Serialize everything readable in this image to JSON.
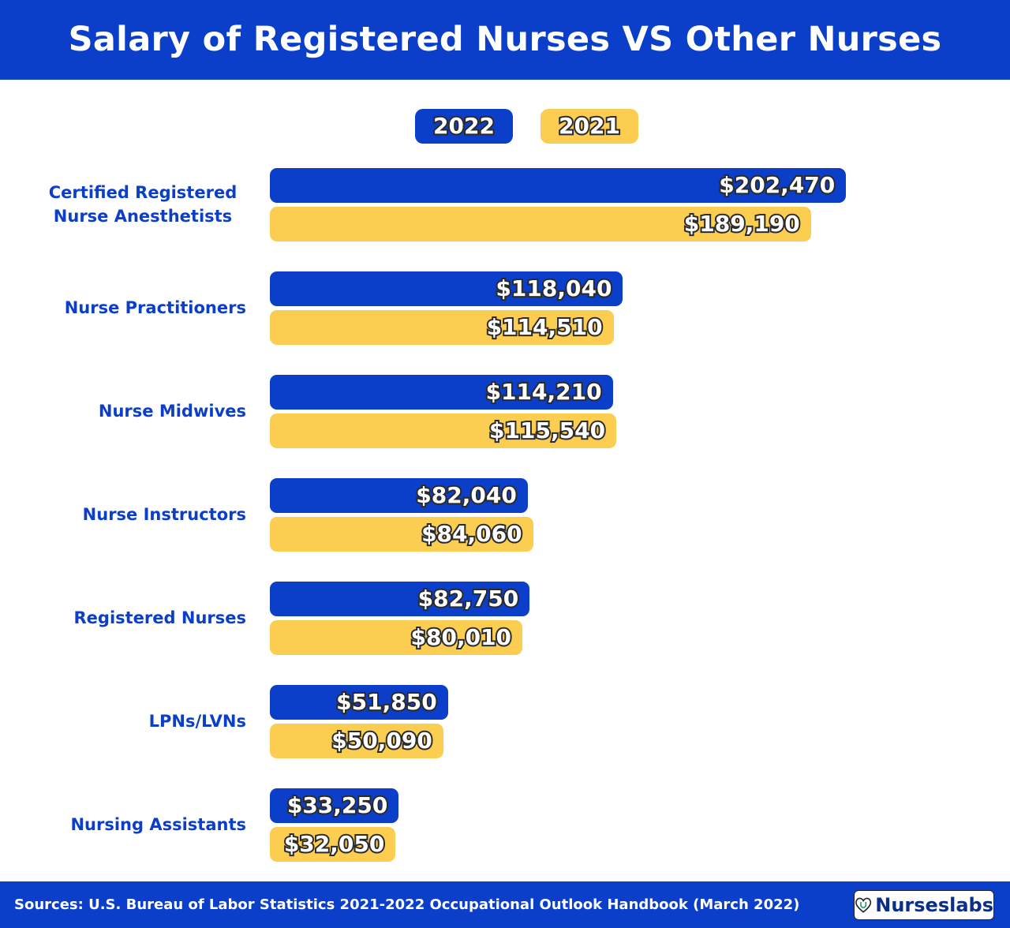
{
  "chart_data": {
    "type": "bar",
    "orientation": "horizontal",
    "title": "Salary of Registered Nurses VS Other Nurses",
    "categories": [
      "Certified Registered Nurse Anesthetists",
      "Nurse Practitioners",
      "Nurse Midwives",
      "Nurse Instructors",
      "Registered Nurses",
      "LPNs/LVNs",
      "Nursing Assistants"
    ],
    "series": [
      {
        "name": "2022",
        "color": "#0b3fc9",
        "values": [
          202470,
          118040,
          114210,
          82040,
          82750,
          51850,
          33250
        ],
        "labels": [
          "$202,470",
          "$118,040",
          "$114,210",
          "$82,040",
          "$82,750",
          "$51,850",
          "$33,250"
        ]
      },
      {
        "name": "2021",
        "color": "#fbcd50",
        "values": [
          189190,
          114510,
          115540,
          84060,
          80010,
          50090,
          32050
        ],
        "labels": [
          "$189,190",
          "$114,510",
          "$115,540",
          "$84,060",
          "$80,010",
          "$50,090",
          "$32,050"
        ]
      }
    ],
    "legend_position": "top",
    "grid": false
  },
  "footer": {
    "source": "Sources: U.S. Bureau of Labor Statistics 2021-2022 Occupational Outlook Handbook (March 2022)",
    "logo_text": "Nurseslabs"
  }
}
